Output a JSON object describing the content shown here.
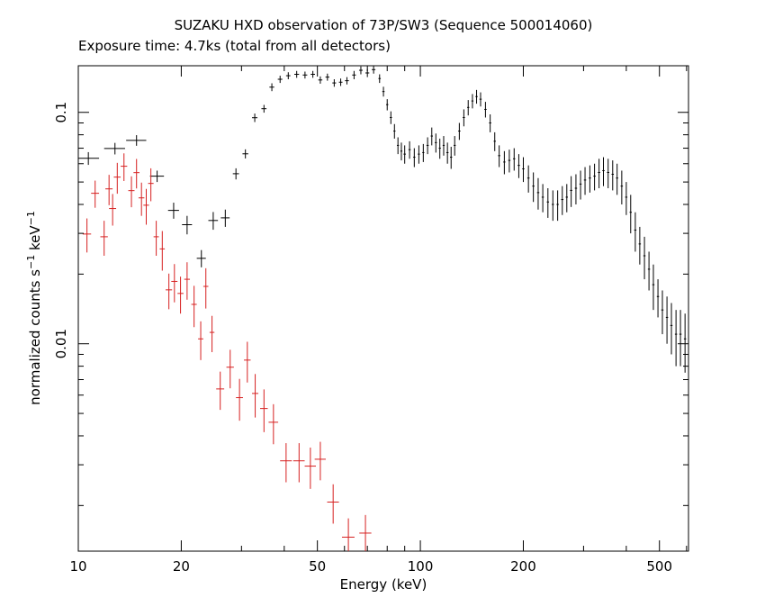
{
  "chart_data": {
    "type": "scatter",
    "title": "SUZAKU HXD observation of 73P/SW3 (Sequence 500014060)",
    "subtitle": "Exposure time: 4.7ks (total from all detectors)",
    "xlabel": "Energy (keV)",
    "ylabel_parts": [
      "normalized counts s",
      "−1",
      " keV",
      "−1"
    ],
    "xscale": "log",
    "yscale": "log",
    "xlim": [
      10,
      608
    ],
    "ylim": [
      0.00127,
      0.159
    ],
    "xticks": [
      10,
      20,
      50,
      100,
      200,
      500
    ],
    "xminor_ticks": [
      30,
      40,
      60,
      70,
      80,
      90,
      300,
      400,
      600
    ],
    "yticks": [
      0.01,
      0.1
    ],
    "yminor_ticks": [
      0.002,
      0.003,
      0.004,
      0.005,
      0.006,
      0.007,
      0.008,
      0.009,
      0.02,
      0.03,
      0.04,
      0.05,
      0.06,
      0.07,
      0.08,
      0.09
    ],
    "series": [
      {
        "color": "#000000",
        "x": [
          10.7,
          12.8,
          14.8,
          17.0,
          19.0,
          20.8,
          22.9,
          24.8,
          26.9,
          28.9,
          30.8,
          32.8,
          34.9,
          36.8,
          38.9,
          41.1,
          43.5,
          46,
          48.5,
          51,
          53.5,
          56,
          58.5,
          61,
          64,
          67,
          70,
          73,
          76,
          78,
          80,
          82,
          84,
          86,
          88,
          90,
          93,
          96,
          99,
          102,
          105,
          108,
          111,
          114,
          117,
          120,
          123,
          126,
          130,
          134,
          138,
          142,
          146,
          150,
          155,
          160,
          165,
          170,
          176,
          182,
          188,
          194,
          200,
          207,
          214,
          221,
          228,
          236,
          244,
          252,
          260,
          268,
          276,
          285,
          294,
          303,
          313,
          323,
          333,
          343,
          354,
          365,
          376,
          388,
          400,
          412,
          425,
          438,
          452,
          466,
          480,
          495,
          510,
          526,
          542,
          559,
          576,
          594
        ],
        "values": [
          0.0633,
          0.0698,
          0.0757,
          0.053,
          0.0377,
          0.0327,
          0.0234,
          0.0341,
          0.035,
          0.0543,
          0.0662,
          0.0948,
          0.1037,
          0.1285,
          0.139,
          0.144,
          0.146,
          0.145,
          0.146,
          0.138,
          0.142,
          0.134,
          0.135,
          0.137,
          0.145,
          0.152,
          0.148,
          0.153,
          0.14,
          0.123,
          0.108,
          0.095,
          0.083,
          0.072,
          0.068,
          0.066,
          0.069,
          0.064,
          0.066,
          0.067,
          0.072,
          0.079,
          0.074,
          0.07,
          0.072,
          0.067,
          0.064,
          0.072,
          0.083,
          0.095,
          0.105,
          0.112,
          0.117,
          0.114,
          0.103,
          0.09,
          0.075,
          0.065,
          0.061,
          0.062,
          0.063,
          0.059,
          0.057,
          0.052,
          0.048,
          0.045,
          0.043,
          0.041,
          0.04,
          0.04,
          0.042,
          0.043,
          0.046,
          0.047,
          0.049,
          0.051,
          0.052,
          0.053,
          0.055,
          0.056,
          0.055,
          0.054,
          0.052,
          0.048,
          0.043,
          0.037,
          0.031,
          0.027,
          0.024,
          0.021,
          0.018,
          0.016,
          0.014,
          0.013,
          0.012,
          0.011,
          0.011,
          0.0105
        ],
        "xerr": [
          0.8,
          0.9,
          1.0,
          0.8,
          0.7,
          0.7,
          0.7,
          0.8,
          0.8,
          0.6,
          0.6,
          0.6,
          0.6,
          0.6,
          0.6,
          0.6,
          0.7,
          0.7,
          0.7,
          0.7,
          0.7,
          0.7,
          0.7,
          0.8,
          0.8,
          0.8,
          0.9,
          0.9,
          0.6,
          0.6,
          0.6,
          0.6,
          0.6,
          0.6,
          0.6,
          0.7,
          0.7,
          0.7,
          0.7,
          0.7,
          0.8,
          0.8,
          0.8,
          0.8,
          0.8,
          0.9,
          0.9,
          0.9,
          1.0,
          1.0,
          1.0,
          1.0,
          1.1,
          1.1,
          1.2,
          1.2,
          1.2,
          1.3,
          1.3,
          1.4,
          1.4,
          1.5,
          1.5,
          1.6,
          1.6,
          1.7,
          1.7,
          1.8,
          1.8,
          1.9,
          2.0,
          2.0,
          2.1,
          2.2,
          2.2,
          2.3,
          2.4,
          2.5,
          2.5,
          2.6,
          2.7,
          2.8,
          2.9,
          3.0,
          3.0,
          3.1,
          3.2,
          3.3,
          3.4,
          3.5,
          3.6,
          3.7,
          3.9,
          4.0,
          4.1,
          4.2,
          4.4,
          4.5
        ],
        "yerr": [
          0.004,
          0.004,
          0.004,
          0.003,
          0.003,
          0.003,
          0.002,
          0.003,
          0.003,
          0.003,
          0.003,
          0.004,
          0.004,
          0.005,
          0.005,
          0.005,
          0.005,
          0.005,
          0.005,
          0.005,
          0.005,
          0.005,
          0.005,
          0.005,
          0.006,
          0.006,
          0.006,
          0.006,
          0.006,
          0.006,
          0.006,
          0.006,
          0.006,
          0.006,
          0.006,
          0.006,
          0.006,
          0.006,
          0.006,
          0.006,
          0.006,
          0.007,
          0.007,
          0.007,
          0.007,
          0.007,
          0.007,
          0.007,
          0.007,
          0.008,
          0.008,
          0.008,
          0.008,
          0.008,
          0.008,
          0.008,
          0.007,
          0.007,
          0.007,
          0.007,
          0.007,
          0.007,
          0.007,
          0.007,
          0.007,
          0.007,
          0.006,
          0.006,
          0.006,
          0.006,
          0.006,
          0.006,
          0.007,
          0.007,
          0.007,
          0.007,
          0.007,
          0.007,
          0.008,
          0.008,
          0.008,
          0.008,
          0.008,
          0.008,
          0.007,
          0.007,
          0.006,
          0.005,
          0.005,
          0.004,
          0.004,
          0.003,
          0.003,
          0.003,
          0.003,
          0.003,
          0.003,
          0.003
        ]
      },
      {
        "color": "#d62020",
        "x": [
          10.6,
          11.2,
          11.9,
          12.3,
          12.6,
          13.0,
          13.6,
          14.3,
          14.8,
          15.3,
          15.8,
          16.3,
          16.9,
          17.6,
          18.4,
          19.1,
          19.9,
          20.8,
          21.8,
          22.8,
          23.6,
          24.6,
          26.0,
          27.8,
          29.6,
          31.2,
          32.9,
          34.9,
          37.2,
          40.5,
          44.2,
          47.7,
          51.0,
          55.6,
          61.6,
          69.1
        ],
        "values": [
          0.0298,
          0.0447,
          0.029,
          0.0467,
          0.0384,
          0.0525,
          0.0585,
          0.0459,
          0.0549,
          0.0427,
          0.0397,
          0.0493,
          0.029,
          0.0257,
          0.0171,
          0.0186,
          0.0165,
          0.019,
          0.0148,
          0.0105,
          0.0177,
          0.0112,
          0.00638,
          0.00792,
          0.00585,
          0.0085,
          0.0061,
          0.00525,
          0.00458,
          0.00312,
          0.00312,
          0.00296,
          0.00317,
          0.00207,
          0.00146,
          0.00152
        ],
        "xerr": [
          0.3,
          0.3,
          0.3,
          0.3,
          0.3,
          0.3,
          0.3,
          0.3,
          0.3,
          0.3,
          0.3,
          0.3,
          0.3,
          0.3,
          0.4,
          0.4,
          0.4,
          0.4,
          0.4,
          0.4,
          0.4,
          0.4,
          0.7,
          0.7,
          0.7,
          0.7,
          0.7,
          0.9,
          1.2,
          1.6,
          1.7,
          1.8,
          1.9,
          2.2,
          2.6,
          2.8
        ],
        "yerr": [
          0.005,
          0.006,
          0.005,
          0.007,
          0.006,
          0.008,
          0.008,
          0.007,
          0.008,
          0.007,
          0.007,
          0.008,
          0.005,
          0.005,
          0.003,
          0.0035,
          0.003,
          0.0035,
          0.003,
          0.002,
          0.0035,
          0.002,
          0.0012,
          0.0015,
          0.0012,
          0.0017,
          0.0013,
          0.0011,
          0.0009,
          0.0006,
          0.0006,
          0.0006,
          0.0006,
          0.0004,
          0.0003,
          0.0003
        ]
      }
    ]
  }
}
